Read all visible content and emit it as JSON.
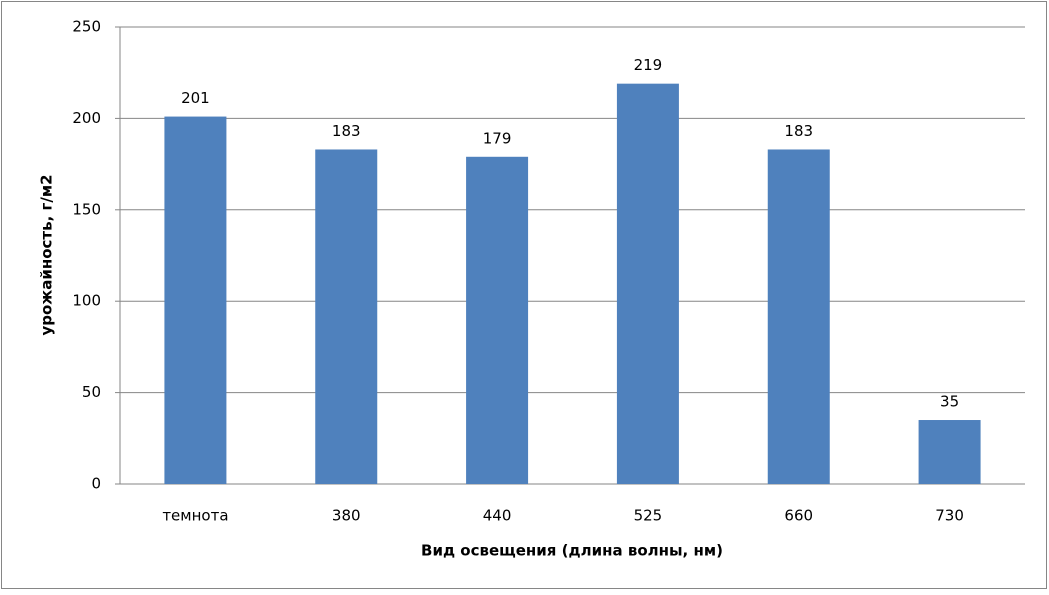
{
  "chart_data": {
    "type": "bar",
    "x_label": "Вид освещения (длина волны, нм)",
    "y_label": "урожайность, г/м2",
    "categories": [
      "темнота",
      "380",
      "440",
      "525",
      "660",
      "730"
    ],
    "values": [
      201,
      183,
      179,
      219,
      183,
      35
    ],
    "color": "#4f81bd",
    "ylim": [
      0,
      250
    ],
    "yticks": [
      0,
      50,
      100,
      150,
      200,
      250
    ],
    "grid": true
  }
}
